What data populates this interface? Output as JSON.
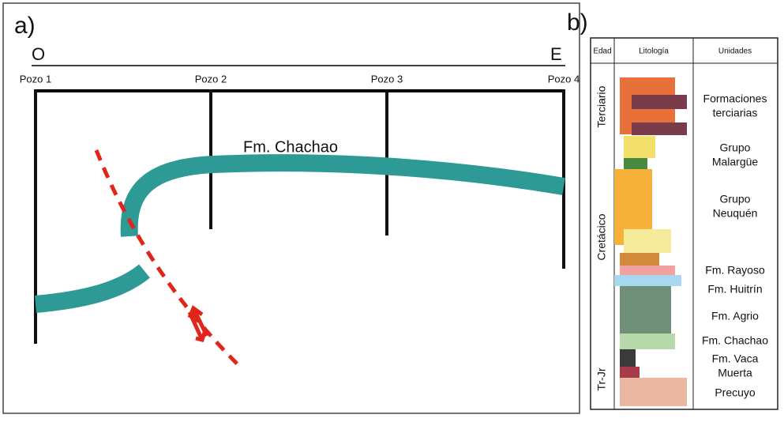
{
  "panel_a": {
    "label": "a)",
    "west": "O",
    "east": "E",
    "wells": [
      "Pozo 1",
      "Pozo 2",
      "Pozo 3",
      "Pozo 4"
    ],
    "formation": "Fm. Chachao"
  },
  "panel_b": {
    "label": "b)",
    "headers": [
      "Edad",
      "Litología",
      "Unidades"
    ],
    "ages": [
      "Terciario",
      "Cretácico",
      "Tr-Jr"
    ],
    "units": [
      [
        "Formaciones",
        "terciarias"
      ],
      [
        "Grupo",
        "Malargüe"
      ],
      [
        "Grupo",
        "Neuquén"
      ],
      [
        "Fm. Rayoso"
      ],
      [
        "Fm. Huitrín"
      ],
      [
        "Fm. Agrio"
      ],
      [
        "Fm. Chachao"
      ],
      [
        "Fm. Vaca",
        "Muerta"
      ],
      [
        "Precuyo"
      ]
    ]
  }
}
